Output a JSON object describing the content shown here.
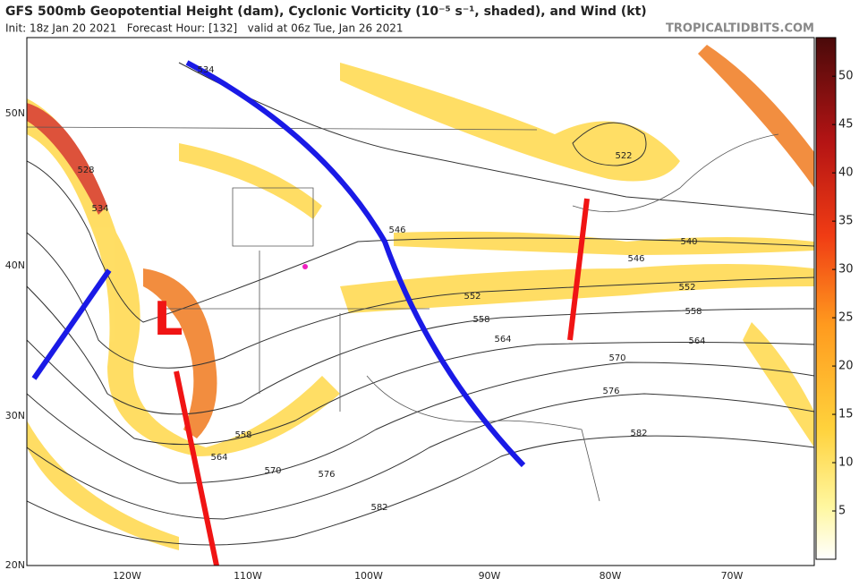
{
  "header": {
    "title": "GFS 500mb Geopotential Height (dam), Cyclonic Vorticity (10⁻⁵ s⁻¹, shaded), and Wind (kt)",
    "subtitle": "Init: 18z Jan 20 2021   Forecast Hour: [132]   valid at 06z Tue, Jan 26 2021",
    "source": "TROPICALTIDBITS.COM"
  },
  "colorbar": {
    "ticks": [
      5,
      10,
      15,
      20,
      25,
      30,
      35,
      40,
      45,
      50
    ],
    "lim": [
      0,
      54
    ]
  },
  "lat_labels": [
    "50N",
    "40N",
    "30N",
    "20N"
  ],
  "lon_labels": [
    "120W",
    "110W",
    "100W",
    "90W",
    "80W",
    "70W"
  ],
  "contour_labels": [
    "534",
    "528",
    "534",
    "546",
    "552",
    "558",
    "564",
    "570",
    "576",
    "582",
    "522",
    "546",
    "540",
    "552",
    "558",
    "564",
    "558",
    "564",
    "570",
    "576",
    "582"
  ],
  "low_label": "L"
}
